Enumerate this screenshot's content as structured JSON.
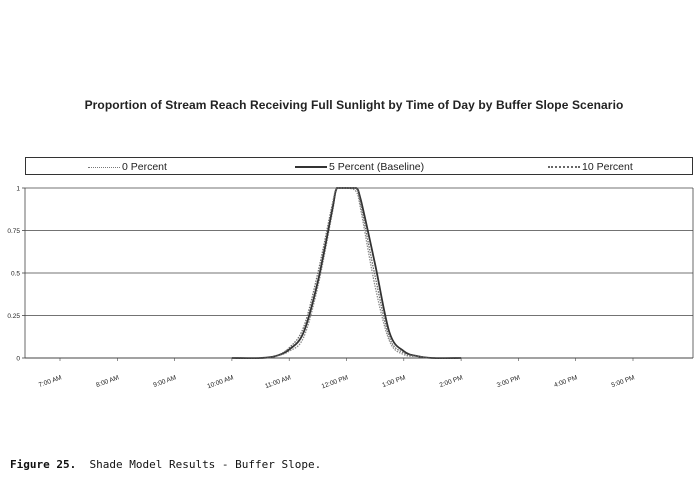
{
  "chart_data": {
    "type": "line",
    "title": "Proportion of Stream Reach Receiving Full Sunlight by Time of Day by Buffer Slope Scenario",
    "xlabel": "",
    "ylabel": "",
    "ylim": [
      0,
      1
    ],
    "y_ticks": [
      "0",
      "0.25",
      "0.5",
      "0.75",
      "1"
    ],
    "x_tick_labels": [
      "7:00 AM",
      "8:00 AM",
      "9:00 AM",
      "10:00 AM",
      "11:00 AM",
      "12:00 PM",
      "1:00 PM",
      "2:00 PM",
      "3:00 PM",
      "4:00 PM",
      "5:00 PM"
    ],
    "grid": true,
    "legend_position": "top",
    "series": [
      {
        "name": "0 Percent",
        "color": "#8a8a8a",
        "style": "dotted",
        "x": [
          "10:00 AM",
          "10:30 AM",
          "10:45 AM",
          "11:00 AM",
          "11:15 AM",
          "11:30 AM",
          "11:45 AM",
          "11:50 AM",
          "12:00 PM",
          "12:10 PM",
          "12:15 PM",
          "12:30 PM",
          "12:45 PM",
          "1:00 PM",
          "1:15 PM",
          "1:30 PM",
          "2:00 PM"
        ],
        "values": [
          0,
          0,
          0.01,
          0.04,
          0.12,
          0.42,
          0.85,
          1,
          1,
          0.98,
          0.87,
          0.42,
          0.1,
          0.02,
          0.01,
          0,
          0
        ]
      },
      {
        "name": "5 Percent (Baseline)",
        "color": "#333333",
        "style": "solid",
        "x": [
          "10:00 AM",
          "10:30 AM",
          "10:45 AM",
          "11:00 AM",
          "11:15 AM",
          "11:30 AM",
          "11:45 AM",
          "11:50 AM",
          "12:00 PM",
          "12:10 PM",
          "12:15 PM",
          "12:30 PM",
          "12:45 PM",
          "1:00 PM",
          "1:15 PM",
          "1:30 PM",
          "2:00 PM"
        ],
        "values": [
          0,
          0,
          0.01,
          0.05,
          0.15,
          0.45,
          0.87,
          1,
          1,
          1,
          0.93,
          0.55,
          0.15,
          0.04,
          0.01,
          0,
          0
        ]
      },
      {
        "name": "10 Percent",
        "color": "#666666",
        "style": "dotted",
        "x": [
          "10:00 AM",
          "10:30 AM",
          "10:45 AM",
          "11:00 AM",
          "11:15 AM",
          "11:30 AM",
          "11:45 AM",
          "11:50 AM",
          "12:00 PM",
          "12:10 PM",
          "12:15 PM",
          "12:30 PM",
          "12:45 PM",
          "1:00 PM",
          "1:15 PM",
          "1:30 PM",
          "2:00 PM"
        ],
        "values": [
          0,
          0,
          0.01,
          0.06,
          0.18,
          0.5,
          0.9,
          1,
          1,
          1,
          0.9,
          0.48,
          0.12,
          0.03,
          0.01,
          0,
          0
        ]
      }
    ]
  },
  "caption": {
    "label": "Figure 25.",
    "text": "  Shade Model Results - Buffer Slope."
  }
}
